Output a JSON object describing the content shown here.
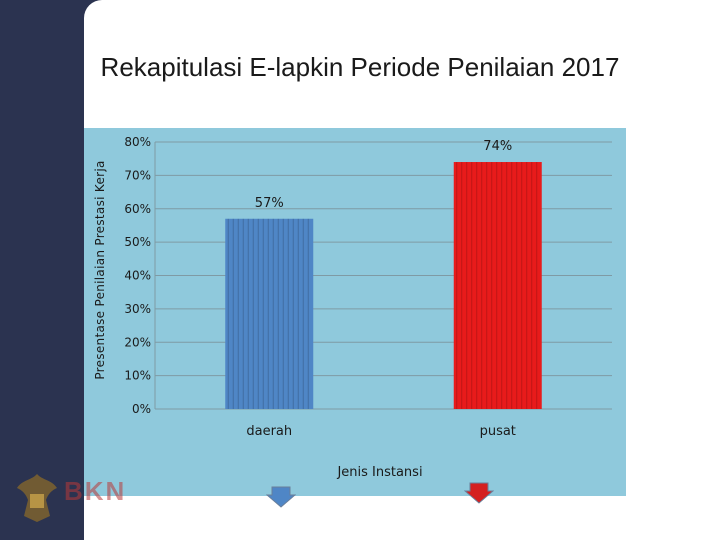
{
  "slide": {
    "title": "Rekapitulasi E-lapkin Periode Penilaian 2017"
  },
  "logo": {
    "text": "BKN"
  },
  "colors": {
    "background_band": "#2b3350",
    "accent_stripe": "#f2b51e",
    "chart_background": "#8fc9dc",
    "nav_arrow_blue": "#4f86c6",
    "nav_arrow_red": "#d42020"
  },
  "chart_data": {
    "type": "bar",
    "title": "",
    "xlabel": "Jenis Instansi",
    "ylabel": "Presentase Penilaian Prestasi Kerja",
    "categories": [
      "daerah",
      "pusat"
    ],
    "values": [
      57,
      74
    ],
    "value_labels": [
      "57%",
      "74%"
    ],
    "bar_colors": [
      "#4f86c6",
      "#e81b1b"
    ],
    "ylim": [
      0,
      80
    ],
    "yticks": [
      0,
      10,
      20,
      30,
      40,
      50,
      60,
      70,
      80
    ],
    "ytick_labels": [
      "0%",
      "10%",
      "20%",
      "30%",
      "40%",
      "50%",
      "60%",
      "70%",
      "80%"
    ],
    "grid": true,
    "legend": "none"
  }
}
